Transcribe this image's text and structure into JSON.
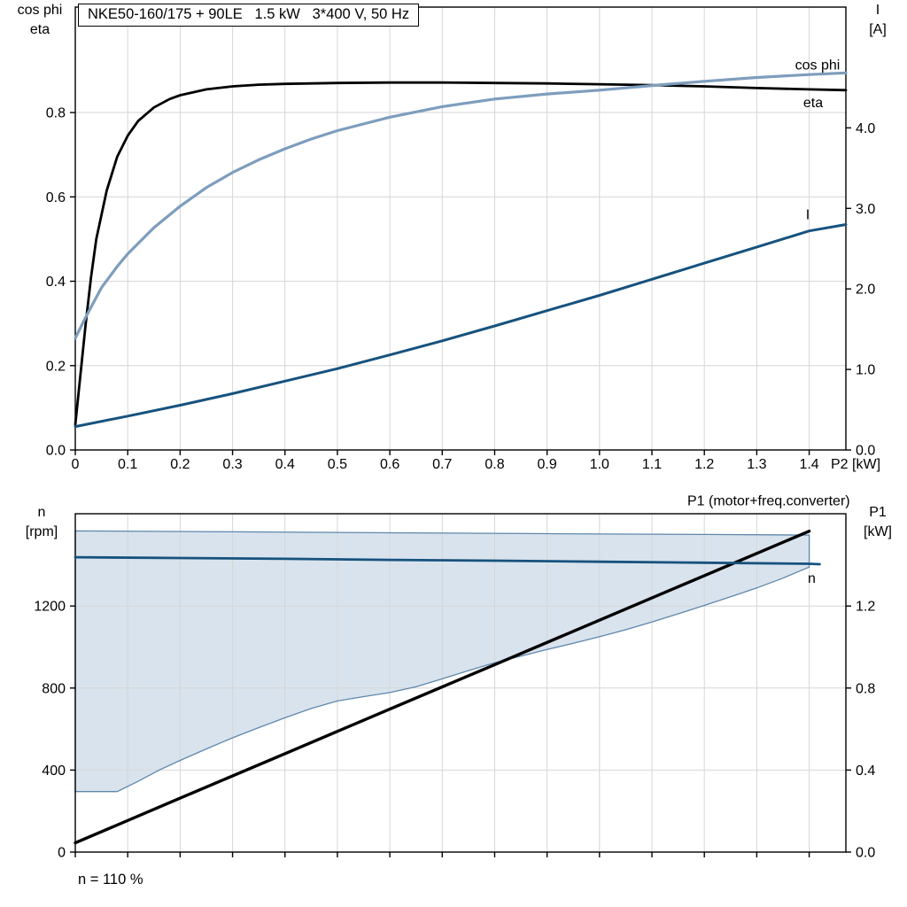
{
  "chart_data": [
    {
      "id": "top",
      "type": "line",
      "title": "NKE50-160/175 + 90LE   1.5 kW   3*400 V, 50 Hz",
      "x_axis": {
        "label": "P2 [kW]",
        "min": 0,
        "max": 1.47,
        "ticks": [
          0,
          0.1,
          0.2,
          0.3,
          0.4,
          0.5,
          0.6,
          0.7,
          0.8,
          0.9,
          1.0,
          1.1,
          1.2,
          1.3,
          1.4
        ],
        "tick_labels": [
          "0",
          "0.1",
          "0.2",
          "0.3",
          "0.4",
          "0.5",
          "0.6",
          "0.7",
          "0.8",
          "0.9",
          "1.0",
          "1.1",
          "1.2",
          "1.3",
          "1.4"
        ],
        "grid": true
      },
      "y_left": {
        "title_lines": [
          "cos phi",
          "eta"
        ],
        "min": 0,
        "max": 1.05,
        "ticks": [
          0,
          0.2,
          0.4,
          0.6,
          0.8
        ],
        "tick_labels": [
          "0.0",
          "0.2",
          "0.4",
          "0.6",
          "0.8"
        ],
        "grid": true
      },
      "y_right": {
        "title_lines": [
          "I",
          "[A]"
        ],
        "min": 0,
        "max": 5.5,
        "ticks": [
          0,
          1,
          2,
          3,
          4
        ],
        "tick_labels": [
          "0.0",
          "1.0",
          "2.0",
          "3.0",
          "4.0"
        ],
        "grid": false
      },
      "series": [
        {
          "name": "eta",
          "axis": "left",
          "color": "#000000",
          "width": 2.8,
          "label": "eta",
          "label_color": "#000000",
          "label_anchor": "middle",
          "label_offset": [
            -37,
            19
          ],
          "points": [
            [
              0,
              0.06
            ],
            [
              0.01,
              0.18
            ],
            [
              0.02,
              0.3
            ],
            [
              0.03,
              0.41
            ],
            [
              0.04,
              0.5
            ],
            [
              0.06,
              0.615
            ],
            [
              0.08,
              0.695
            ],
            [
              0.1,
              0.745
            ],
            [
              0.12,
              0.78
            ],
            [
              0.15,
              0.812
            ],
            [
              0.18,
              0.832
            ],
            [
              0.2,
              0.841
            ],
            [
              0.25,
              0.855
            ],
            [
              0.3,
              0.862
            ],
            [
              0.35,
              0.866
            ],
            [
              0.4,
              0.868
            ],
            [
              0.5,
              0.87
            ],
            [
              0.6,
              0.871
            ],
            [
              0.7,
              0.871
            ],
            [
              0.8,
              0.87
            ],
            [
              0.9,
              0.869
            ],
            [
              1.0,
              0.867
            ],
            [
              1.1,
              0.865
            ],
            [
              1.2,
              0.862
            ],
            [
              1.3,
              0.858
            ],
            [
              1.4,
              0.855
            ],
            [
              1.47,
              0.853
            ]
          ]
        },
        {
          "name": "cos phi",
          "axis": "left",
          "color": "#7e9dbd",
          "width": 3.2,
          "label": "cos phi",
          "label_color": "#7e9dbd",
          "label_anchor": "middle",
          "label_offset": [
            -32,
            -4
          ],
          "points": [
            [
              0,
              0.265
            ],
            [
              0.02,
              0.315
            ],
            [
              0.05,
              0.385
            ],
            [
              0.08,
              0.435
            ],
            [
              0.1,
              0.465
            ],
            [
              0.15,
              0.527
            ],
            [
              0.2,
              0.578
            ],
            [
              0.25,
              0.622
            ],
            [
              0.3,
              0.658
            ],
            [
              0.35,
              0.688
            ],
            [
              0.4,
              0.714
            ],
            [
              0.45,
              0.737
            ],
            [
              0.5,
              0.757
            ],
            [
              0.6,
              0.789
            ],
            [
              0.7,
              0.814
            ],
            [
              0.8,
              0.832
            ],
            [
              0.9,
              0.844
            ],
            [
              1.0,
              0.853
            ],
            [
              1.1,
              0.864
            ],
            [
              1.2,
              0.874
            ],
            [
              1.3,
              0.883
            ],
            [
              1.4,
              0.89
            ],
            [
              1.47,
              0.894
            ]
          ]
        },
        {
          "name": "I",
          "axis": "right",
          "color": "#16527e",
          "width": 3,
          "label": "I",
          "label_color": "#16527e",
          "label_anchor": "middle",
          "label_offset": [
            -43,
            -6
          ],
          "points": [
            [
              0,
              0.29
            ],
            [
              0.1,
              0.42
            ],
            [
              0.2,
              0.555
            ],
            [
              0.3,
              0.7
            ],
            [
              0.4,
              0.855
            ],
            [
              0.5,
              1.01
            ],
            [
              0.6,
              1.18
            ],
            [
              0.7,
              1.355
            ],
            [
              0.8,
              1.54
            ],
            [
              0.9,
              1.73
            ],
            [
              1.0,
              1.92
            ],
            [
              1.1,
              2.12
            ],
            [
              1.2,
              2.32
            ],
            [
              1.3,
              2.52
            ],
            [
              1.4,
              2.72
            ],
            [
              1.47,
              2.8
            ]
          ]
        }
      ]
    },
    {
      "id": "bottom",
      "type": "line",
      "x_axis": {
        "min": 0,
        "max": 1.47,
        "ticks": [
          0,
          0.1,
          0.2,
          0.3,
          0.4,
          0.5,
          0.6,
          0.7,
          0.8,
          0.9,
          1.0,
          1.1,
          1.2,
          1.3,
          1.4
        ],
        "grid": true
      },
      "y_left": {
        "title_lines": [
          "n",
          "[rpm]"
        ],
        "min": 0,
        "max": 1650,
        "ticks": [
          0,
          400,
          800,
          1200
        ],
        "tick_labels": [
          "0",
          "400",
          "800",
          "1200"
        ],
        "grid": true
      },
      "y_right": {
        "title_lines": [
          "P1",
          "[kW]"
        ],
        "min": 0,
        "max": 1.65,
        "ticks": [
          0,
          0.4,
          0.8,
          1.2
        ],
        "tick_labels": [
          "0.0",
          "0.4",
          "0.8",
          "1.2"
        ],
        "grid": false
      },
      "band": {
        "name": "speed range",
        "fill": "#cfdce9",
        "fill_opacity": 0.8,
        "stroke": "#5e87ac",
        "upper": [
          [
            0,
            1566
          ],
          [
            0.3,
            1562
          ],
          [
            0.6,
            1557
          ],
          [
            0.9,
            1553
          ],
          [
            1.2,
            1549
          ],
          [
            1.4,
            1546
          ]
        ],
        "lower": [
          [
            0,
            295
          ],
          [
            0.08,
            295
          ],
          [
            0.12,
            345
          ],
          [
            0.16,
            400
          ],
          [
            0.2,
            447
          ],
          [
            0.25,
            503
          ],
          [
            0.3,
            557
          ],
          [
            0.35,
            607
          ],
          [
            0.4,
            655
          ],
          [
            0.45,
            700
          ],
          [
            0.5,
            737
          ],
          [
            0.55,
            758
          ],
          [
            0.6,
            778
          ],
          [
            0.65,
            806
          ],
          [
            0.7,
            845
          ],
          [
            0.75,
            885
          ],
          [
            0.8,
            923
          ],
          [
            0.85,
            956
          ],
          [
            0.9,
            988
          ],
          [
            0.95,
            1018
          ],
          [
            1.0,
            1050
          ],
          [
            1.05,
            1084
          ],
          [
            1.1,
            1122
          ],
          [
            1.15,
            1162
          ],
          [
            1.2,
            1203
          ],
          [
            1.25,
            1245
          ],
          [
            1.3,
            1288
          ],
          [
            1.35,
            1336
          ],
          [
            1.4,
            1390
          ]
        ]
      },
      "series": [
        {
          "name": "P1",
          "axis": "right",
          "color": "#000000",
          "width": 3.4,
          "label": "P1 (motor+freq.converter)",
          "label_color": "#000000",
          "label_anchor": "end",
          "label_offset": [
            46,
            -29
          ],
          "points": [
            [
              0,
              0.045
            ],
            [
              0.2,
              0.263
            ],
            [
              0.4,
              0.48
            ],
            [
              0.6,
              0.697
            ],
            [
              0.8,
              0.914
            ],
            [
              1.0,
              1.131
            ],
            [
              1.2,
              1.348
            ],
            [
              1.4,
              1.565
            ]
          ]
        },
        {
          "name": "n",
          "axis": "left",
          "color": "#16527e",
          "width": 2.8,
          "label": "n",
          "label_color": "#16527e",
          "label_anchor": "middle",
          "label_offset": [
            -9,
            21
          ],
          "points": [
            [
              0,
              1438
            ],
            [
              0.2,
              1434
            ],
            [
              0.4,
              1430
            ],
            [
              0.6,
              1425
            ],
            [
              0.8,
              1421
            ],
            [
              1.0,
              1416
            ],
            [
              1.2,
              1411
            ],
            [
              1.4,
              1406
            ],
            [
              1.42,
              1404
            ]
          ]
        }
      ],
      "annotations": [
        "n = 110 %"
      ]
    }
  ]
}
